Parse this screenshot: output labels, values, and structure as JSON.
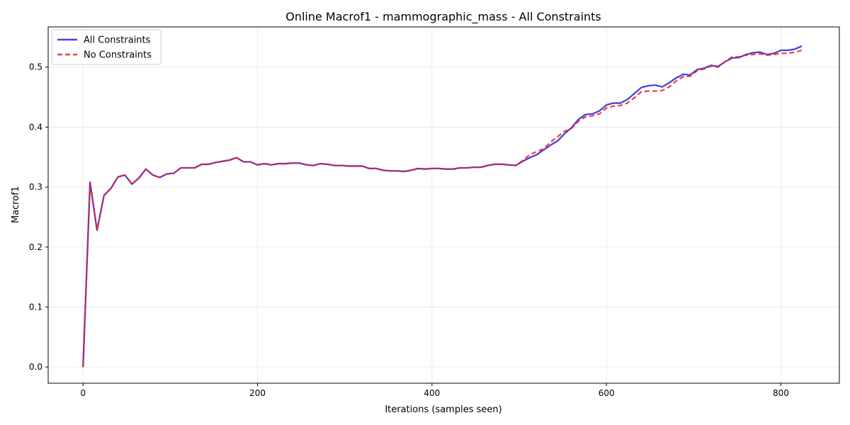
{
  "chart_data": {
    "type": "line",
    "title": "Online Macrof1 - mammographic_mass - All Constraints",
    "xlabel": "Iterations (samples seen)",
    "ylabel": "Macrof1",
    "xlim": [
      -40,
      867
    ],
    "ylim": [
      -0.027,
      0.567
    ],
    "x_ticks": [
      0,
      200,
      400,
      600,
      800
    ],
    "y_ticks": [
      0.0,
      0.1,
      0.2,
      0.3,
      0.4,
      0.5
    ],
    "x_tick_labels": [
      "0",
      "200",
      "400",
      "600",
      "800"
    ],
    "y_tick_labels": [
      "0.0",
      "0.1",
      "0.2",
      "0.3",
      "0.4",
      "0.5"
    ],
    "grid": true,
    "legend_position": "top-left",
    "series": [
      {
        "name": "All Constraints",
        "color": "#2222dd",
        "style": "solid",
        "points": [
          [
            0,
            0.0
          ],
          [
            8,
            0.308
          ],
          [
            16,
            0.228
          ],
          [
            24,
            0.286
          ],
          [
            32,
            0.298
          ],
          [
            40,
            0.317
          ],
          [
            48,
            0.32
          ],
          [
            56,
            0.305
          ],
          [
            64,
            0.315
          ],
          [
            72,
            0.33
          ],
          [
            80,
            0.32
          ],
          [
            88,
            0.316
          ],
          [
            96,
            0.322
          ],
          [
            104,
            0.323
          ],
          [
            112,
            0.332
          ],
          [
            120,
            0.332
          ],
          [
            128,
            0.332
          ],
          [
            136,
            0.338
          ],
          [
            144,
            0.338
          ],
          [
            152,
            0.341
          ],
          [
            160,
            0.343
          ],
          [
            168,
            0.345
          ],
          [
            176,
            0.349
          ],
          [
            184,
            0.342
          ],
          [
            192,
            0.342
          ],
          [
            200,
            0.337
          ],
          [
            208,
            0.339
          ],
          [
            216,
            0.337
          ],
          [
            224,
            0.339
          ],
          [
            232,
            0.339
          ],
          [
            240,
            0.34
          ],
          [
            248,
            0.34
          ],
          [
            256,
            0.337
          ],
          [
            264,
            0.336
          ],
          [
            272,
            0.339
          ],
          [
            280,
            0.338
          ],
          [
            288,
            0.336
          ],
          [
            296,
            0.336
          ],
          [
            304,
            0.335
          ],
          [
            312,
            0.335
          ],
          [
            320,
            0.335
          ],
          [
            328,
            0.331
          ],
          [
            336,
            0.331
          ],
          [
            344,
            0.328
          ],
          [
            352,
            0.327
          ],
          [
            360,
            0.327
          ],
          [
            368,
            0.326
          ],
          [
            376,
            0.328
          ],
          [
            384,
            0.331
          ],
          [
            392,
            0.33
          ],
          [
            400,
            0.331
          ],
          [
            408,
            0.331
          ],
          [
            416,
            0.33
          ],
          [
            424,
            0.33
          ],
          [
            432,
            0.332
          ],
          [
            440,
            0.332
          ],
          [
            448,
            0.333
          ],
          [
            456,
            0.333
          ],
          [
            464,
            0.336
          ],
          [
            472,
            0.338
          ],
          [
            480,
            0.338
          ],
          [
            488,
            0.337
          ],
          [
            496,
            0.336
          ],
          [
            504,
            0.343
          ],
          [
            512,
            0.349
          ],
          [
            520,
            0.354
          ],
          [
            528,
            0.362
          ],
          [
            536,
            0.37
          ],
          [
            544,
            0.377
          ],
          [
            552,
            0.389
          ],
          [
            560,
            0.399
          ],
          [
            568,
            0.413
          ],
          [
            576,
            0.421
          ],
          [
            584,
            0.422
          ],
          [
            592,
            0.427
          ],
          [
            600,
            0.437
          ],
          [
            608,
            0.44
          ],
          [
            616,
            0.44
          ],
          [
            624,
            0.446
          ],
          [
            632,
            0.456
          ],
          [
            640,
            0.466
          ],
          [
            648,
            0.469
          ],
          [
            656,
            0.47
          ],
          [
            664,
            0.467
          ],
          [
            672,
            0.474
          ],
          [
            680,
            0.482
          ],
          [
            688,
            0.488
          ],
          [
            696,
            0.487
          ],
          [
            704,
            0.496
          ],
          [
            712,
            0.498
          ],
          [
            720,
            0.503
          ],
          [
            728,
            0.501
          ],
          [
            736,
            0.509
          ],
          [
            744,
            0.515
          ],
          [
            752,
            0.516
          ],
          [
            760,
            0.521
          ],
          [
            768,
            0.524
          ],
          [
            776,
            0.525
          ],
          [
            784,
            0.521
          ],
          [
            792,
            0.523
          ],
          [
            800,
            0.528
          ],
          [
            808,
            0.528
          ],
          [
            816,
            0.53
          ],
          [
            824,
            0.535
          ]
        ]
      },
      {
        "name": "No Constraints",
        "color": "#ee2222",
        "style": "dashed",
        "points": [
          [
            0,
            0.0
          ],
          [
            8,
            0.308
          ],
          [
            16,
            0.228
          ],
          [
            24,
            0.286
          ],
          [
            32,
            0.298
          ],
          [
            40,
            0.317
          ],
          [
            48,
            0.32
          ],
          [
            56,
            0.305
          ],
          [
            64,
            0.315
          ],
          [
            72,
            0.33
          ],
          [
            80,
            0.32
          ],
          [
            88,
            0.316
          ],
          [
            96,
            0.322
          ],
          [
            104,
            0.323
          ],
          [
            112,
            0.332
          ],
          [
            120,
            0.332
          ],
          [
            128,
            0.332
          ],
          [
            136,
            0.338
          ],
          [
            144,
            0.338
          ],
          [
            152,
            0.341
          ],
          [
            160,
            0.343
          ],
          [
            168,
            0.345
          ],
          [
            176,
            0.349
          ],
          [
            184,
            0.342
          ],
          [
            192,
            0.342
          ],
          [
            200,
            0.337
          ],
          [
            208,
            0.339
          ],
          [
            216,
            0.337
          ],
          [
            224,
            0.339
          ],
          [
            232,
            0.339
          ],
          [
            240,
            0.34
          ],
          [
            248,
            0.34
          ],
          [
            256,
            0.337
          ],
          [
            264,
            0.336
          ],
          [
            272,
            0.339
          ],
          [
            280,
            0.338
          ],
          [
            288,
            0.336
          ],
          [
            296,
            0.336
          ],
          [
            304,
            0.335
          ],
          [
            312,
            0.335
          ],
          [
            320,
            0.335
          ],
          [
            328,
            0.331
          ],
          [
            336,
            0.331
          ],
          [
            344,
            0.328
          ],
          [
            352,
            0.327
          ],
          [
            360,
            0.327
          ],
          [
            368,
            0.326
          ],
          [
            376,
            0.328
          ],
          [
            384,
            0.331
          ],
          [
            392,
            0.33
          ],
          [
            400,
            0.331
          ],
          [
            408,
            0.331
          ],
          [
            416,
            0.33
          ],
          [
            424,
            0.33
          ],
          [
            432,
            0.332
          ],
          [
            440,
            0.332
          ],
          [
            448,
            0.333
          ],
          [
            456,
            0.333
          ],
          [
            464,
            0.336
          ],
          [
            472,
            0.338
          ],
          [
            480,
            0.338
          ],
          [
            488,
            0.337
          ],
          [
            496,
            0.336
          ],
          [
            504,
            0.344
          ],
          [
            512,
            0.354
          ],
          [
            520,
            0.359
          ],
          [
            528,
            0.364
          ],
          [
            536,
            0.375
          ],
          [
            544,
            0.384
          ],
          [
            552,
            0.393
          ],
          [
            560,
            0.398
          ],
          [
            568,
            0.41
          ],
          [
            576,
            0.417
          ],
          [
            584,
            0.419
          ],
          [
            592,
            0.422
          ],
          [
            600,
            0.432
          ],
          [
            608,
            0.435
          ],
          [
            616,
            0.436
          ],
          [
            624,
            0.44
          ],
          [
            632,
            0.449
          ],
          [
            640,
            0.459
          ],
          [
            648,
            0.46
          ],
          [
            656,
            0.46
          ],
          [
            664,
            0.461
          ],
          [
            672,
            0.467
          ],
          [
            680,
            0.477
          ],
          [
            688,
            0.484
          ],
          [
            696,
            0.485
          ],
          [
            704,
            0.494
          ],
          [
            712,
            0.497
          ],
          [
            720,
            0.502
          ],
          [
            728,
            0.5
          ],
          [
            736,
            0.509
          ],
          [
            744,
            0.517
          ],
          [
            752,
            0.517
          ],
          [
            760,
            0.52
          ],
          [
            768,
            0.521
          ],
          [
            776,
            0.522
          ],
          [
            784,
            0.52
          ],
          [
            792,
            0.521
          ],
          [
            800,
            0.523
          ],
          [
            808,
            0.523
          ],
          [
            816,
            0.525
          ],
          [
            824,
            0.528
          ]
        ]
      }
    ]
  }
}
